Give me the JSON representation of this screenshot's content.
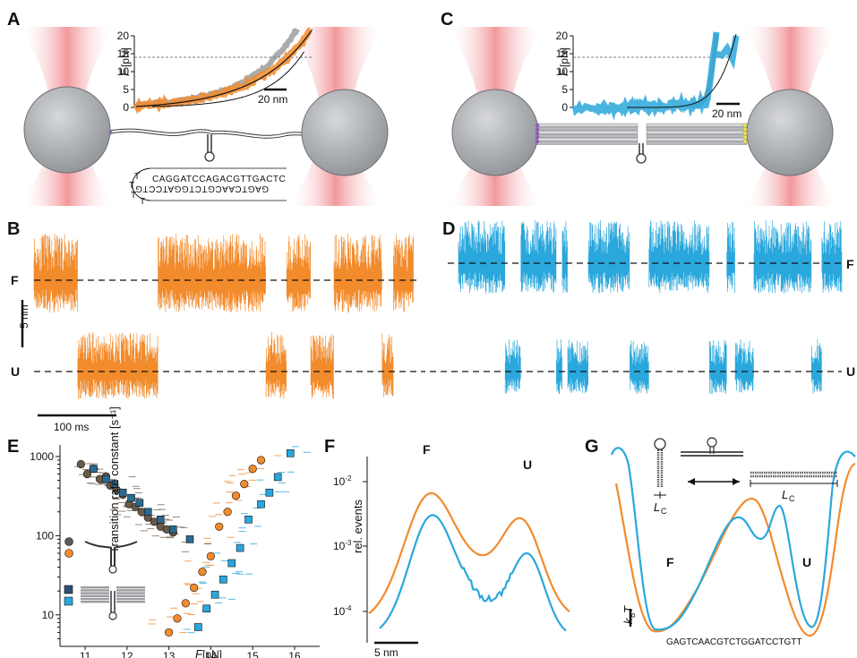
{
  "colors": {
    "orange": "#f28b2c",
    "blue": "#2aa7dc",
    "laser": "#e8424a",
    "bead": "#a7a9ad",
    "dark": "#5a5a5a"
  },
  "panel_A": {
    "label": "A",
    "inset": {
      "y_label_italic": "F",
      "y_label_unit": " [pN]",
      "y_ticks": [
        "0",
        "5",
        "10",
        "15",
        "20"
      ],
      "scale_bar": "20 nm"
    },
    "sequence_top": "CAGGATCCAGACGTTGACTC",
    "sequence_bottom": "GAGTCAACGTCTGGATCCTG",
    "loop_letters": [
      "T",
      "T",
      "T",
      "T"
    ]
  },
  "panel_B": {
    "label": "B",
    "state_F": "F",
    "state_U": "U",
    "scale_y": "5 nm",
    "scale_x": "100 ms"
  },
  "panel_C": {
    "label": "C",
    "inset": {
      "y_label_italic": "F",
      "y_label_unit": " [pN]",
      "y_ticks": [
        "0",
        "5",
        "10",
        "15",
        "20"
      ],
      "scale_bar": "20 nm"
    }
  },
  "panel_D": {
    "label": "D",
    "state_F": "F",
    "state_U": "U"
  },
  "panel_E": {
    "label": "E",
    "y_label": "Transition rate constant [s⁻¹]",
    "x_label_italic": "F",
    "x_label_unit": " [pN]",
    "y_ticks": [
      "10",
      "100",
      "1000"
    ],
    "x_ticks": [
      "11",
      "12",
      "13",
      "14",
      "15",
      "16"
    ]
  },
  "panel_F": {
    "label": "F",
    "y_label": "rel. events",
    "y_ticks": [
      "10",
      "10",
      "10"
    ],
    "y_tick_exps": [
      "-2",
      "-3",
      "-4"
    ],
    "peak_F": "F",
    "peak_U": "U",
    "scale_bar": "5 nm"
  },
  "panel_G": {
    "label": "G",
    "state_F": "F",
    "state_U": "U",
    "lc_left": "L",
    "lc_right": "L",
    "lc_sub": "C",
    "kbt_k": "k",
    "kbt_sub": "B",
    "kbt_T": "T",
    "sequence": "GAGTCAACGTCTGGATCCTGTT"
  },
  "chart_data": [
    {
      "type": "scatter",
      "panel": "E",
      "ylabel": "Transition rate constant [s⁻¹]",
      "xlabel": "F [pN]",
      "xlim": [
        10.4,
        16.6
      ],
      "ylim": [
        4,
        1400
      ],
      "y_scale": "log",
      "series": [
        {
          "marker": "circle",
          "color": "dark",
          "x": [
            10.9,
            11.05,
            11.2,
            11.35,
            11.5,
            11.6,
            11.75,
            11.9,
            12.05,
            12.2,
            12.35,
            12.5,
            12.65,
            12.8,
            12.95,
            13.1
          ],
          "y": [
            800,
            600,
            700,
            520,
            560,
            430,
            380,
            330,
            250,
            230,
            200,
            170,
            150,
            130,
            120,
            110
          ]
        },
        {
          "marker": "circle",
          "color": "orange",
          "x": [
            13.0,
            13.2,
            13.4,
            13.6,
            13.8,
            14.0,
            14.2,
            14.4,
            14.6,
            14.8,
            15.0,
            15.2
          ],
          "y": [
            6,
            9,
            14,
            22,
            35,
            55,
            130,
            200,
            320,
            450,
            700,
            900
          ]
        },
        {
          "marker": "square",
          "color": "dark",
          "x": [
            11.2,
            11.5,
            11.7,
            11.9,
            12.1,
            12.3,
            12.5,
            12.8,
            13.1,
            13.5
          ],
          "y": [
            700,
            520,
            450,
            350,
            300,
            260,
            200,
            160,
            120,
            90
          ]
        },
        {
          "marker": "square",
          "color": "blue",
          "x": [
            13.7,
            13.9,
            14.1,
            14.3,
            14.5,
            14.7,
            14.9,
            15.2,
            15.4,
            15.6,
            15.9
          ],
          "y": [
            7,
            12,
            18,
            28,
            45,
            70,
            160,
            250,
            350,
            550,
            1100
          ]
        }
      ]
    }
  ]
}
